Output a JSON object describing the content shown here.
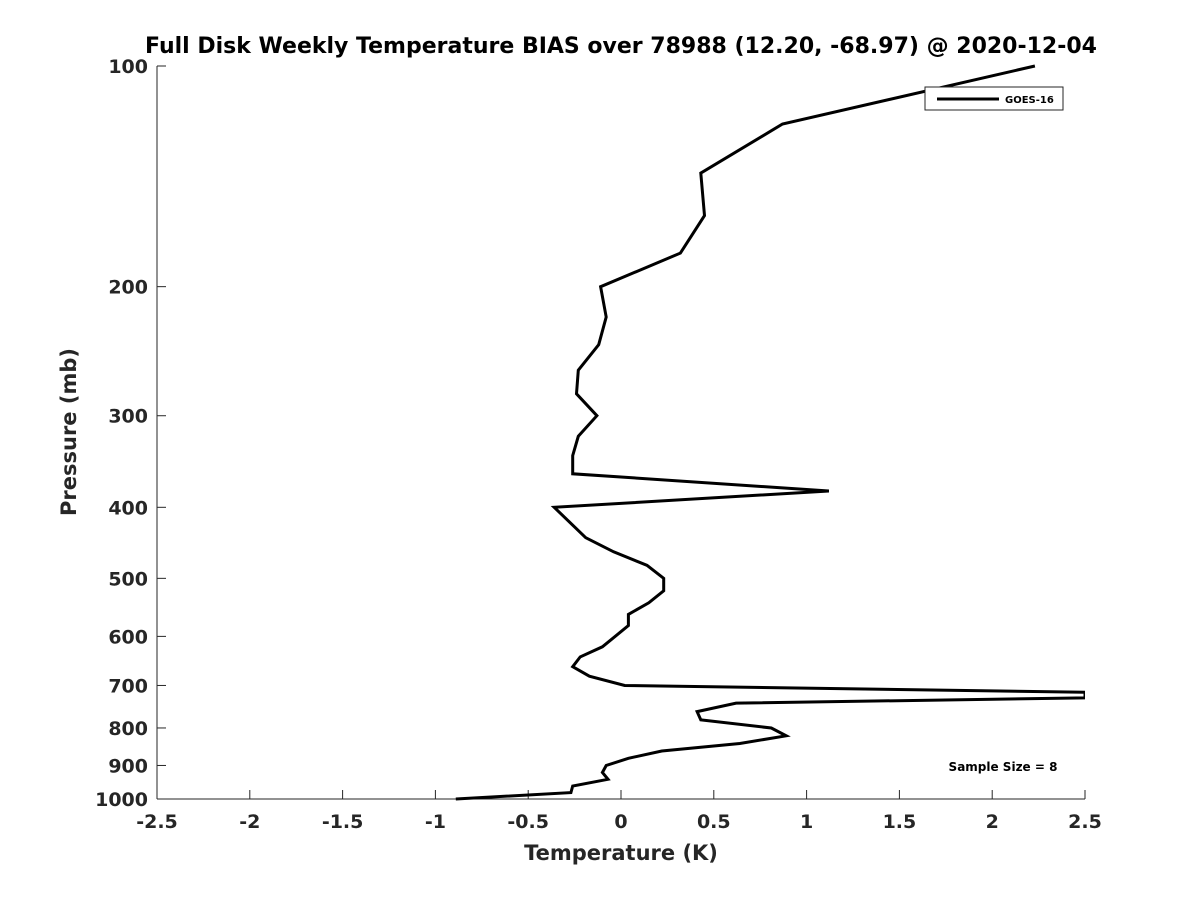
{
  "chart_data": {
    "type": "line",
    "title": "Full Disk Weekly Temperature BIAS over 78988 (12.20, -68.97) @ 2020-12-04",
    "xlabel": "Temperature (K)",
    "ylabel": "Pressure (mb)",
    "xlim": [
      -2.5,
      2.5
    ],
    "ylim": [
      100,
      1000
    ],
    "yscale": "log",
    "y_reversed": true,
    "grid": false,
    "xticks": [
      "-2.5",
      "-2",
      "-1.5",
      "-1",
      "-0.5",
      "0",
      "0.5",
      "1",
      "1.5",
      "2",
      "2.5"
    ],
    "xtick_values": [
      -2.5,
      -2,
      -1.5,
      -1,
      -0.5,
      0,
      0.5,
      1,
      1.5,
      2,
      2.5
    ],
    "yticks": [
      "100",
      "200",
      "300",
      "400",
      "500",
      "600",
      "700",
      "800",
      "900",
      "1000"
    ],
    "ytick_values": [
      100,
      200,
      300,
      400,
      500,
      600,
      700,
      800,
      900,
      1000
    ],
    "legend": {
      "placement": "top-right",
      "entries": [
        "GOES-16"
      ]
    },
    "annotation": "Sample Size = 8",
    "series": [
      {
        "name": "GOES-16",
        "color": "#000000",
        "points": [
          [
            2.23,
            100
          ],
          [
            0.87,
            120
          ],
          [
            0.43,
            140
          ],
          [
            0.45,
            160
          ],
          [
            0.32,
            180
          ],
          [
            -0.11,
            200
          ],
          [
            -0.08,
            220
          ],
          [
            -0.12,
            240
          ],
          [
            -0.23,
            260
          ],
          [
            -0.24,
            280
          ],
          [
            -0.13,
            300
          ],
          [
            -0.23,
            320
          ],
          [
            -0.26,
            340
          ],
          [
            -0.26,
            360
          ],
          [
            1.12,
            380
          ],
          [
            -0.36,
            400
          ],
          [
            -0.19,
            440
          ],
          [
            -0.04,
            460
          ],
          [
            0.14,
            480
          ],
          [
            0.23,
            500
          ],
          [
            0.23,
            520
          ],
          [
            0.15,
            540
          ],
          [
            0.04,
            560
          ],
          [
            0.04,
            580
          ],
          [
            -0.1,
            620
          ],
          [
            -0.22,
            640
          ],
          [
            -0.26,
            660
          ],
          [
            -0.17,
            680
          ],
          [
            0.02,
            700
          ],
          [
            2.5,
            715
          ],
          [
            2.5,
            728
          ],
          [
            0.62,
            740
          ],
          [
            0.41,
            760
          ],
          [
            0.43,
            780
          ],
          [
            0.81,
            800
          ],
          [
            0.89,
            820
          ],
          [
            0.64,
            840
          ],
          [
            0.22,
            860
          ],
          [
            0.04,
            880
          ],
          [
            -0.08,
            900
          ],
          [
            -0.1,
            920
          ],
          [
            -0.07,
            940
          ],
          [
            -0.26,
            960
          ],
          [
            -0.27,
            980
          ],
          [
            -0.89,
            1000
          ]
        ]
      }
    ]
  }
}
